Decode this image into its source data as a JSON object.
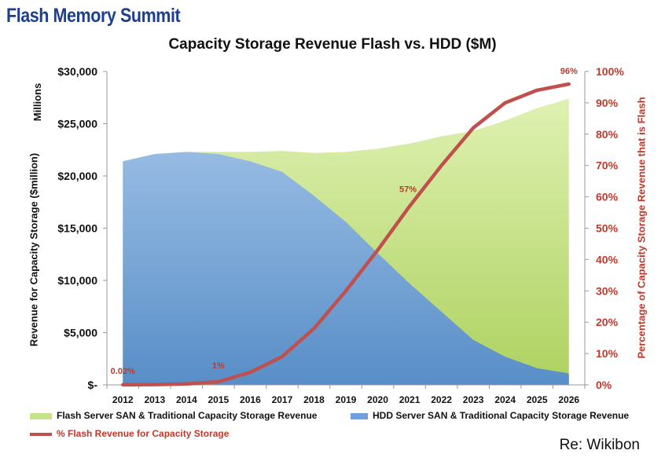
{
  "logo": {
    "text": "Flash Memory Summit"
  },
  "chart_data": {
    "type": "area",
    "title": "Capacity Storage Revenue Flash vs. HDD ($M)",
    "units_label": "Millions",
    "ylabel": "Revenue for Capacity Storage ($million)",
    "ylabel_right": "Percentage of Capacity Storage Revenue that is Flash",
    "x": [
      "2012",
      "2013",
      "2014",
      "2015",
      "2016",
      "2017",
      "2018",
      "2019",
      "2020",
      "2021",
      "2022",
      "2023",
      "2024",
      "2025",
      "2026"
    ],
    "ylim": [
      0,
      30000
    ],
    "ylim_right": [
      0,
      100
    ],
    "y_ticks": [
      "$-",
      "$5,000",
      "$10,000",
      "$15,000",
      "$20,000",
      "$25,000",
      "$30,000"
    ],
    "y_ticks_right": [
      "0%",
      "10%",
      "20%",
      "30%",
      "40%",
      "50%",
      "60%",
      "70%",
      "80%",
      "90%",
      "100%"
    ],
    "series": [
      {
        "name": "Flash Server SAN & Traditional Capacity Storage Revenue",
        "type": "area",
        "color": "#c6e28a",
        "values": [
          21400,
          22100,
          22300,
          22300,
          22300,
          22400,
          22200,
          22300,
          22600,
          23100,
          23800,
          24300,
          25300,
          26500,
          27400
        ]
      },
      {
        "name": "HDD Server SAN & Traditional Capacity Storage Revenue",
        "type": "area",
        "color": "#6e9fdf",
        "values": [
          21400,
          22100,
          22300,
          22100,
          21400,
          20400,
          18100,
          15600,
          12600,
          9700,
          7000,
          4300,
          2700,
          1600,
          1100
        ]
      },
      {
        "name": "% Flash Revenue for Capacity Storage",
        "type": "line",
        "axis": "right",
        "color": "#c0504d",
        "values": [
          0.02,
          0.1,
          0.3,
          1,
          4,
          9,
          18,
          30,
          43,
          57,
          70,
          82,
          90,
          94,
          96
        ]
      }
    ],
    "annotations": [
      {
        "label": "0.02%",
        "series": 2,
        "index": 0
      },
      {
        "label": "1%",
        "series": 2,
        "index": 3
      },
      {
        "label": "57%",
        "series": 2,
        "index": 9
      },
      {
        "label": "96%",
        "series": 2,
        "index": 14
      }
    ],
    "grid": false,
    "legend": "bottom"
  },
  "source": "Re: Wikibon"
}
